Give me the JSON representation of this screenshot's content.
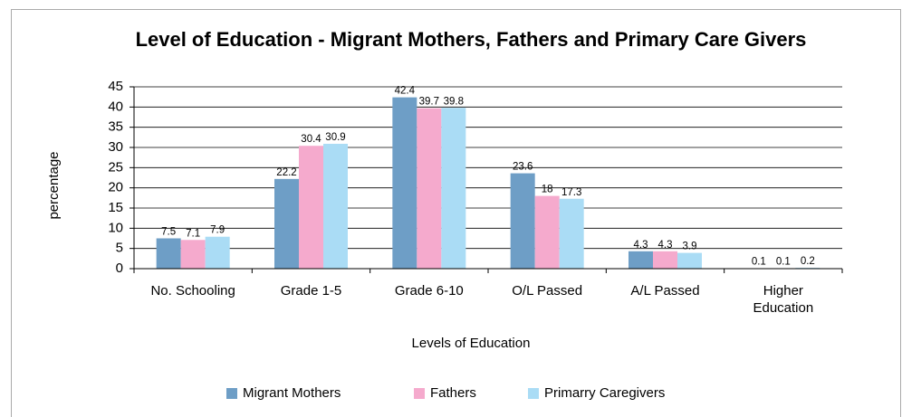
{
  "chart_data": {
    "type": "bar",
    "title": "Level of Education - Migrant Mothers, Fathers and Primary Care Givers",
    "x_label": "Levels of Education",
    "y_label": "percentage",
    "categories": [
      "No. Schooling",
      "Grade 1-5",
      "Grade 6-10",
      "O/L Passed",
      "A/L Passed",
      "Higher Education"
    ],
    "series": [
      {
        "name": "Migrant Mothers",
        "color": "#6e9ec6",
        "values": [
          7.5,
          22.2,
          42.4,
          23.6,
          4.3,
          0.1
        ]
      },
      {
        "name": "Fathers",
        "color": "#f5aacd",
        "values": [
          7.1,
          30.4,
          39.7,
          18,
          4.3,
          0.1
        ]
      },
      {
        "name": "Primarry Caregivers",
        "color": "#aadcf5",
        "values": [
          7.9,
          30.9,
          39.8,
          17.3,
          3.9,
          0.2
        ]
      }
    ],
    "ylim": [
      0,
      45
    ],
    "yticks": [
      0,
      5,
      10,
      15,
      20,
      25,
      30,
      35,
      40,
      45
    ],
    "grid": true,
    "legend": "bottom"
  }
}
